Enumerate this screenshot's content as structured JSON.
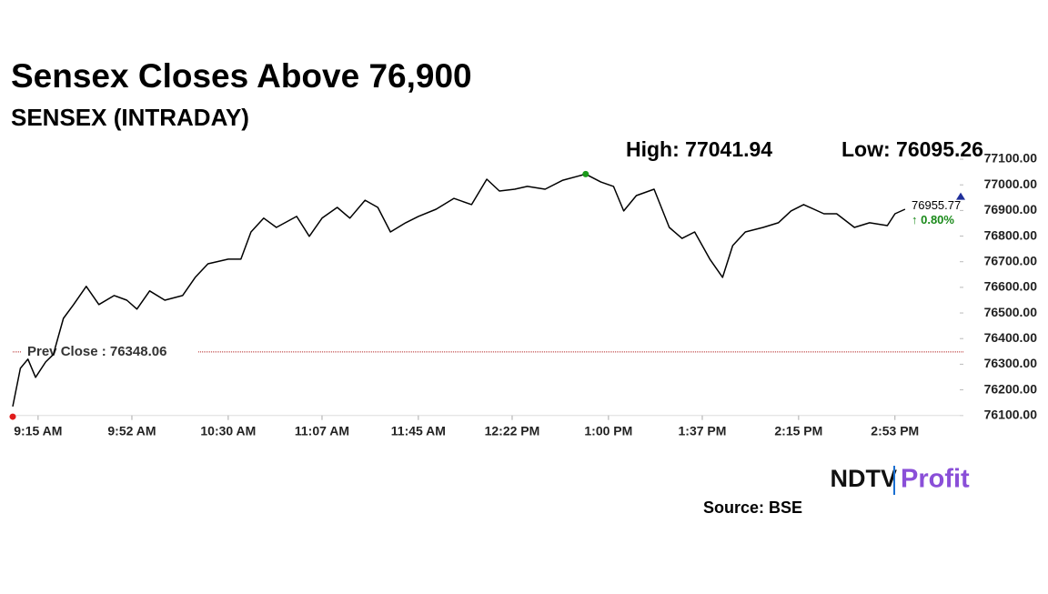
{
  "chart_data": {
    "type": "line",
    "title": "Sensex Closes Above 76,900",
    "subtitle": "SENSEX (INTRADAY)",
    "high": {
      "value": 77041.94,
      "label": "High: 77041.94"
    },
    "low": {
      "value": 76095.26,
      "label": "Low: 76095.26"
    },
    "prev_close": {
      "value": 76348.06,
      "label": "Prev Close : 76348.06"
    },
    "last_price": 76955.77,
    "change": "↑ 0.80%",
    "source": "Source: BSE",
    "logo": [
      "NDTV",
      "Profit"
    ],
    "color": "#000000",
    "x": [
      "9:05 AM",
      "9:08 AM",
      "9:11 AM",
      "9:14 AM",
      "9:18 AM",
      "9:21 AM",
      "9:25 AM",
      "9:29 AM",
      "9:34 AM",
      "9:39 AM",
      "9:45 AM",
      "9:50 AM",
      "9:54 AM",
      "9:59 AM",
      "10:05 AM",
      "10:12 AM",
      "10:17 AM",
      "10:22 AM",
      "10:30 AM",
      "10:35 AM",
      "10:39 AM",
      "10:44 AM",
      "10:49 AM",
      "10:57 AM",
      "11:02 AM",
      "11:07 AM",
      "11:13 AM",
      "11:18 AM",
      "11:24 AM",
      "11:29 AM",
      "11:34 AM",
      "11:40 AM",
      "11:45 AM",
      "11:52 AM",
      "11:59 AM",
      "12:06 PM",
      "12:12 PM",
      "12:17 PM",
      "12:23 PM",
      "12:28 PM",
      "12:35 PM",
      "12:42 PM",
      "12:51 PM",
      "12:57 PM",
      "1:02 PM",
      "1:06 PM",
      "1:11 PM",
      "1:18 PM",
      "1:24 PM",
      "1:29 PM",
      "1:34 PM",
      "1:40 PM",
      "1:45 PM",
      "1:49 PM",
      "1:54 PM",
      "2:01 PM",
      "2:07 PM",
      "2:12 PM",
      "2:17 PM",
      "2:25 PM",
      "2:30 PM",
      "2:37 PM",
      "2:43 PM",
      "2:50 PM",
      "2:53 PM",
      "2:57 PM"
    ],
    "values": [
      76135,
      76284,
      76320,
      76249,
      76309,
      76338,
      76479,
      76533,
      76604,
      76533,
      76568,
      76550,
      76515,
      76586,
      76550,
      76568,
      76639,
      76692,
      76710,
      76710,
      76816,
      76870,
      76834,
      76877,
      76799,
      76870,
      76912,
      76870,
      76940,
      76912,
      76816,
      76852,
      76877,
      76905,
      76947,
      76923,
      77022,
      76976,
      76983,
      76994,
      76983,
      77018,
      77042,
      77011,
      76994,
      76898,
      76958,
      76983,
      76834,
      76791,
      76816,
      76710,
      76639,
      76763,
      76816,
      76834,
      76852,
      76898,
      76923,
      76887,
      76887,
      76834,
      76852,
      76841,
      76887,
      76905
    ],
    "xlim": [
      "9:05 AM",
      "3:20 PM"
    ],
    "xticks": [
      "9:15 AM",
      "9:52 AM",
      "10:30 AM",
      "11:07 AM",
      "11:45 AM",
      "12:22 PM",
      "1:00 PM",
      "1:37 PM",
      "2:15 PM",
      "2:53 PM"
    ],
    "ylim": [
      76060,
      77125
    ],
    "yticks": [
      {
        "value": 76100,
        "label": "76100.00"
      },
      {
        "value": 76200,
        "label": "76200.00"
      },
      {
        "value": 76300,
        "label": "76300.00"
      },
      {
        "value": 76400,
        "label": "76400.00"
      },
      {
        "value": 76500,
        "label": "76500.00"
      },
      {
        "value": 76600,
        "label": "76600.00"
      },
      {
        "value": 76700,
        "label": "76700.00"
      },
      {
        "value": 76800,
        "label": "76800.00"
      },
      {
        "value": 76900,
        "label": "76900.00"
      },
      {
        "value": 77000,
        "label": "77000.00"
      },
      {
        "value": 77100,
        "label": "77100.00"
      }
    ]
  }
}
